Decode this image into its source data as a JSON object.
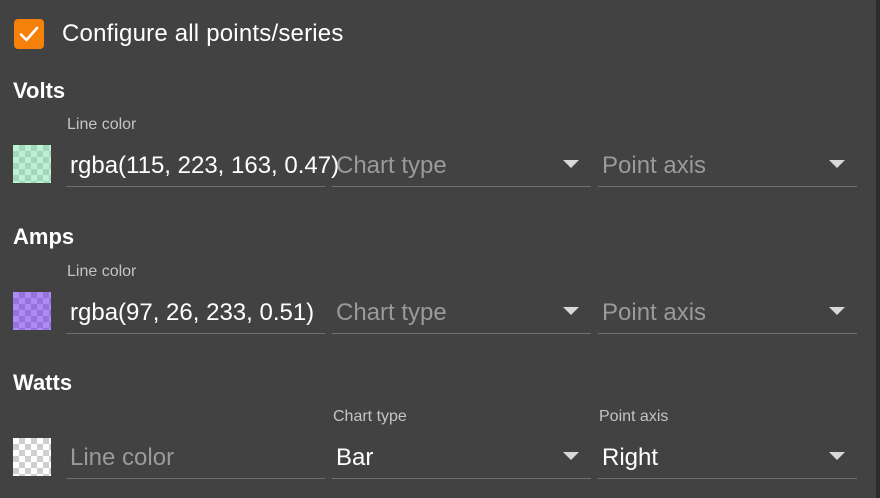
{
  "configure_all": {
    "label": "Configure all points/series",
    "checked": true
  },
  "accent_color": "#f5800a",
  "series": [
    {
      "name": "Volts",
      "swatch_color": "#73dfa3",
      "swatch_alpha": 0.47,
      "line_color": {
        "label": "Line color",
        "value": "rgba(115, 223, 163, 0.47)"
      },
      "chart_type": {
        "label": "Chart type",
        "value": ""
      },
      "point_axis": {
        "label": "Point axis",
        "value": ""
      }
    },
    {
      "name": "Amps",
      "swatch_color": "#611ae9",
      "swatch_alpha": 0.51,
      "line_color": {
        "label": "Line color",
        "value": "rgba(97, 26, 233, 0.51)"
      },
      "chart_type": {
        "label": "Chart type",
        "value": ""
      },
      "point_axis": {
        "label": "Point axis",
        "value": ""
      }
    },
    {
      "name": "Watts",
      "swatch_color": "",
      "swatch_alpha": 0,
      "line_color": {
        "label": "Line color",
        "value": ""
      },
      "chart_type": {
        "label": "Chart type",
        "value": "Bar"
      },
      "point_axis": {
        "label": "Point axis",
        "value": "Right"
      }
    }
  ]
}
